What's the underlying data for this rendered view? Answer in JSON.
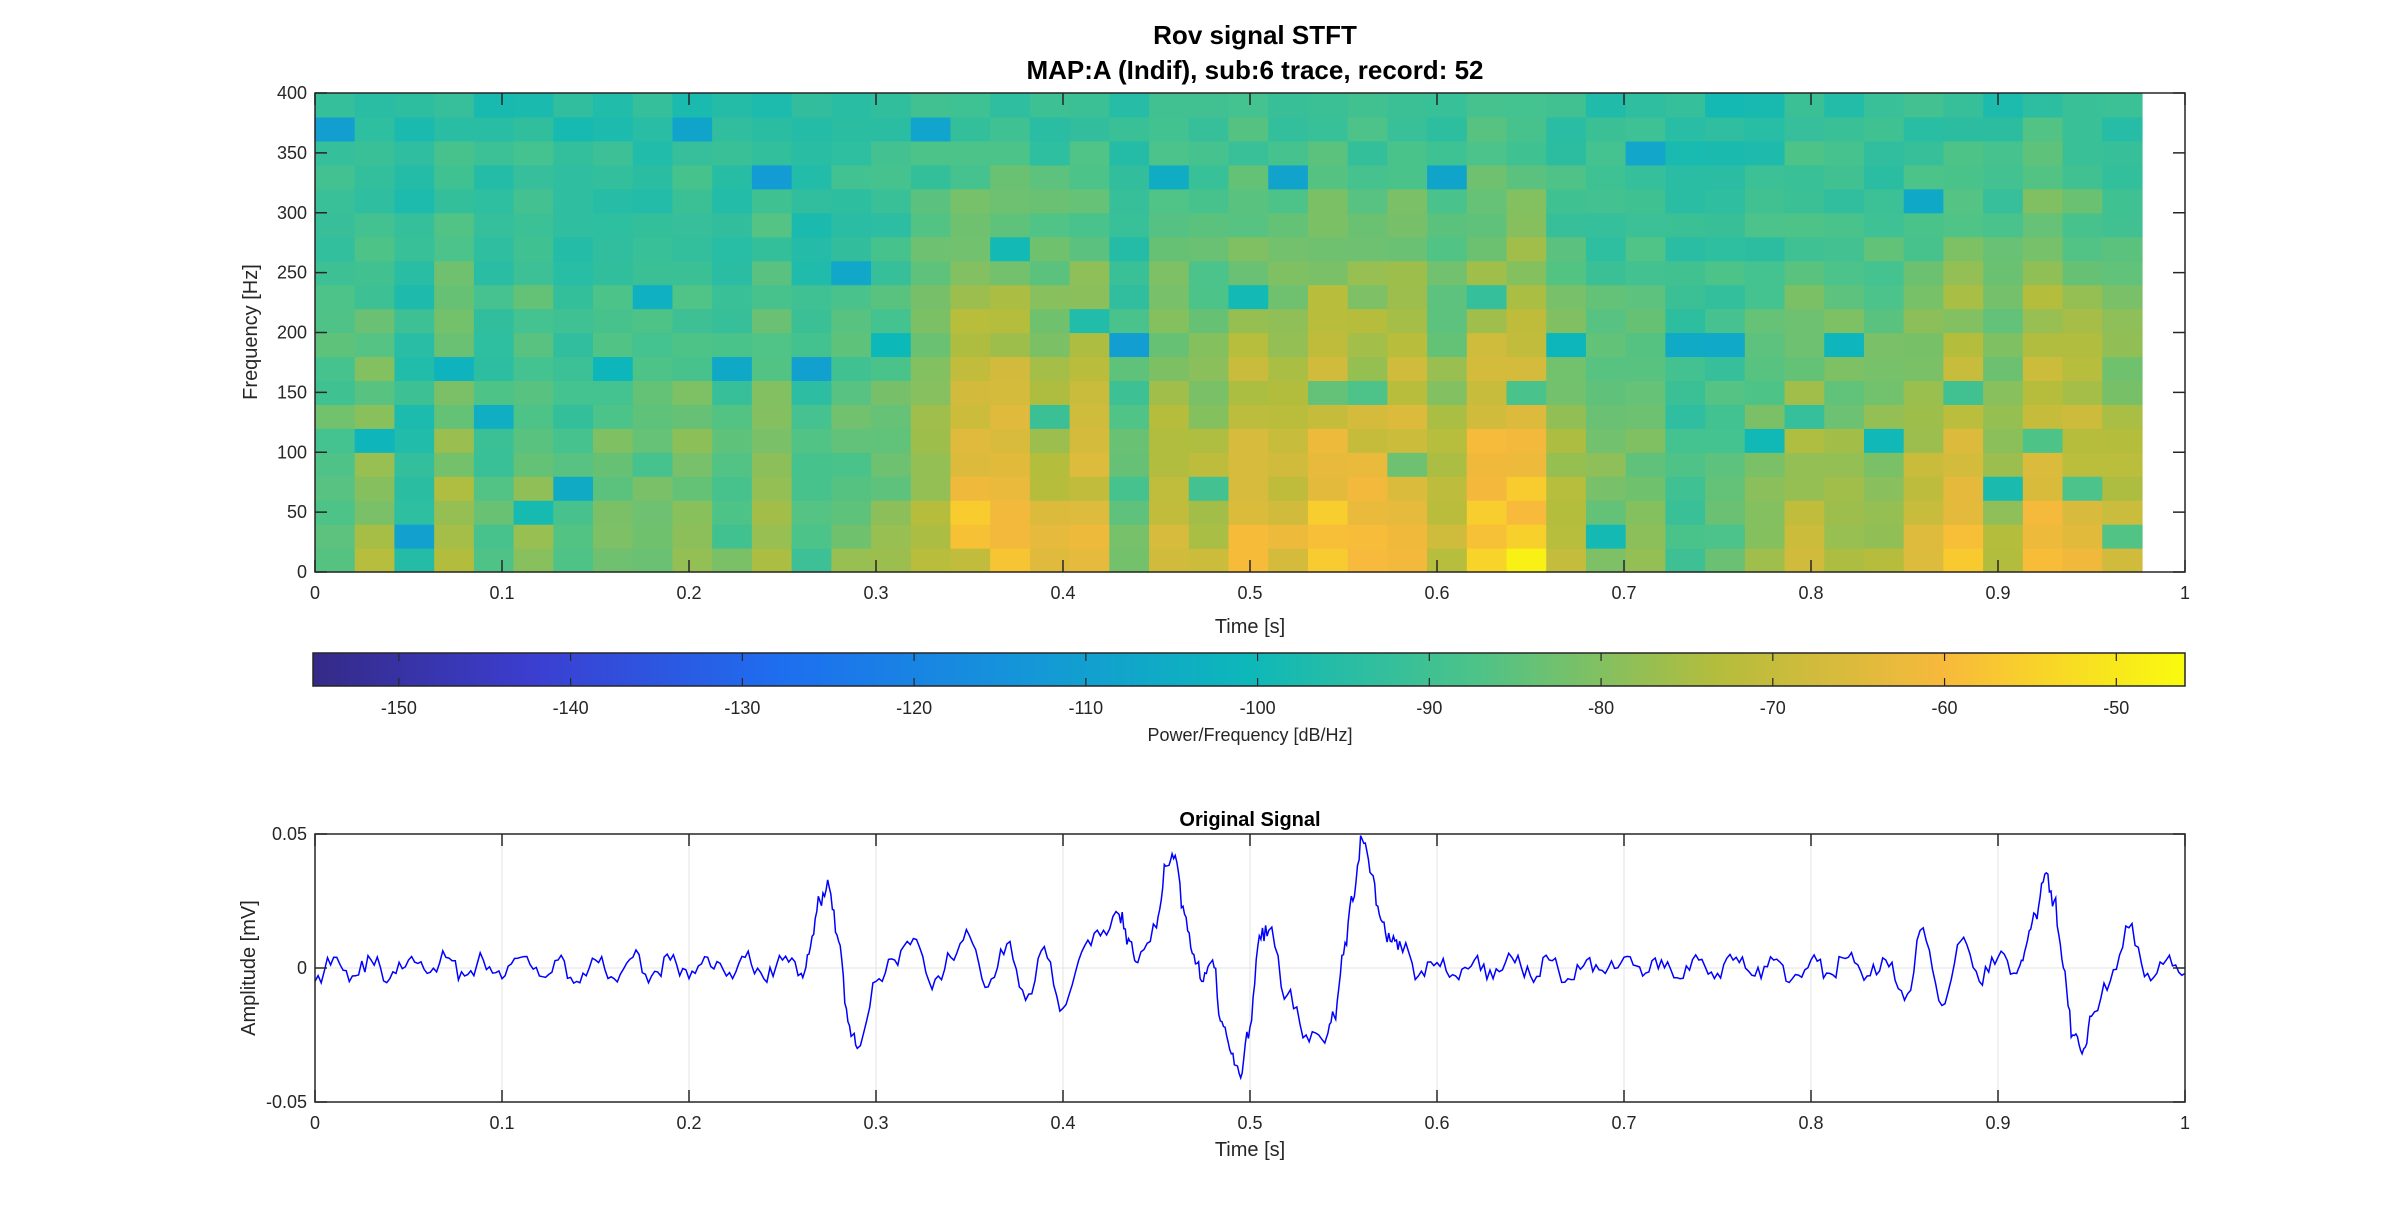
{
  "figure": {
    "title_line1": "Rov signal STFT",
    "title_line2": "MAP:A (Indif), sub:6 trace, record: 52"
  },
  "chart_data": [
    {
      "type": "heatmap",
      "name": "spectrogram",
      "xlabel": "Time [s]",
      "ylabel": "Frequency [Hz]",
      "xlim": [
        0,
        1
      ],
      "ylim": [
        0,
        400
      ],
      "xticks": [
        0,
        0.1,
        0.2,
        0.3,
        0.4,
        0.5,
        0.6,
        0.7,
        0.8,
        0.9,
        1
      ],
      "xtick_labels": [
        "0",
        "0.1",
        "0.2",
        "0.3",
        "0.4",
        "0.5",
        "0.6",
        "0.7",
        "0.8",
        "0.9",
        "1"
      ],
      "yticks": [
        0,
        50,
        100,
        150,
        200,
        250,
        300,
        350,
        400
      ],
      "ytick_labels": [
        "0",
        "50",
        "100",
        "150",
        "200",
        "250",
        "300",
        "350",
        "400"
      ],
      "data_time_range": [
        0,
        0.977
      ],
      "time_bins": 46,
      "freq_bins": 20,
      "colormap": "parula",
      "colorbar": {
        "label": "Power/Frequency [dB/Hz]",
        "range": [
          -155,
          -46
        ],
        "ticks": [
          -150,
          -140,
          -130,
          -120,
          -110,
          -100,
          -90,
          -80,
          -70,
          -60,
          -50
        ],
        "tick_labels": [
          "-150",
          "-140",
          "-130",
          "-120",
          "-110",
          "-100",
          "-90",
          "-80",
          "-70",
          "-60",
          "-50"
        ],
        "location": "bottom"
      },
      "columns_low_freq_power_db": [
        -82,
        -76,
        -92,
        -74,
        -86,
        -79,
        -88,
        -80,
        -82,
        -78,
        -85,
        -77,
        -88,
        -81,
        -79,
        -72,
        -56,
        -57,
        -66,
        -62,
        -84,
        -68,
        -70,
        -59,
        -64,
        -55,
        -60,
        -57,
        -70,
        -54,
        -52,
        -72,
        -79,
        -77,
        -88,
        -84,
        -80,
        -71,
        -74,
        -75,
        -66,
        -60,
        -73,
        -57,
        -63,
        -70
      ]
    },
    {
      "type": "line",
      "name": "original-signal",
      "title": "Original Signal",
      "xlabel": "Time [s]",
      "ylabel": "Amplitude [mV]",
      "xlim": [
        0,
        1
      ],
      "ylim": [
        -0.05,
        0.05
      ],
      "xticks": [
        0,
        0.1,
        0.2,
        0.3,
        0.4,
        0.5,
        0.6,
        0.7,
        0.8,
        0.9,
        1
      ],
      "xtick_labels": [
        "0",
        "0.1",
        "0.2",
        "0.3",
        "0.4",
        "0.5",
        "0.6",
        "0.7",
        "0.8",
        "0.9",
        "1"
      ],
      "yticks": [
        -0.05,
        0,
        0.05
      ],
      "ytick_labels": [
        "-0.05",
        "0",
        "0.05"
      ],
      "grid": true,
      "series": [
        {
          "color": "#0000ff",
          "x": [
            0,
            0.01,
            0.02,
            0.03,
            0.04,
            0.05,
            0.06,
            0.07,
            0.08,
            0.09,
            0.1,
            0.11,
            0.12,
            0.13,
            0.14,
            0.15,
            0.16,
            0.17,
            0.18,
            0.19,
            0.2,
            0.21,
            0.22,
            0.23,
            0.24,
            0.25,
            0.26,
            0.265,
            0.27,
            0.275,
            0.28,
            0.285,
            0.29,
            0.3,
            0.31,
            0.32,
            0.33,
            0.34,
            0.35,
            0.36,
            0.37,
            0.38,
            0.39,
            0.4,
            0.41,
            0.42,
            0.43,
            0.435,
            0.44,
            0.45,
            0.455,
            0.46,
            0.465,
            0.47,
            0.475,
            0.48,
            0.485,
            0.49,
            0.495,
            0.5,
            0.505,
            0.51,
            0.52,
            0.53,
            0.54,
            0.545,
            0.55,
            0.555,
            0.56,
            0.565,
            0.57,
            0.575,
            0.58,
            0.59,
            0.6,
            0.61,
            0.62,
            0.63,
            0.64,
            0.65,
            0.66,
            0.67,
            0.68,
            0.69,
            0.7,
            0.71,
            0.72,
            0.73,
            0.74,
            0.75,
            0.76,
            0.77,
            0.78,
            0.79,
            0.8,
            0.81,
            0.82,
            0.83,
            0.84,
            0.85,
            0.86,
            0.87,
            0.88,
            0.89,
            0.9,
            0.91,
            0.915,
            0.92,
            0.925,
            0.93,
            0.935,
            0.94,
            0.945,
            0.95,
            0.96,
            0.97,
            0.98,
            0.99,
            1.0
          ],
          "y": [
            -0.005,
            0.004,
            -0.003,
            0.003,
            -0.004,
            0.003,
            -0.002,
            0.004,
            -0.003,
            0.003,
            -0.004,
            0.004,
            -0.003,
            0.003,
            -0.005,
            0.003,
            -0.004,
            0.004,
            -0.003,
            0.003,
            -0.004,
            0.004,
            -0.003,
            0.004,
            -0.004,
            0.003,
            -0.002,
            0.008,
            0.025,
            0.03,
            0.01,
            -0.02,
            -0.03,
            -0.005,
            0.003,
            0.011,
            -0.008,
            0.004,
            0.012,
            -0.007,
            0.009,
            -0.012,
            0.008,
            -0.015,
            0.006,
            0.012,
            0.02,
            0.011,
            0.002,
            0.015,
            0.038,
            0.042,
            0.02,
            0.005,
            -0.005,
            0.003,
            -0.02,
            -0.032,
            -0.041,
            -0.022,
            0.012,
            0.014,
            -0.01,
            -0.025,
            -0.028,
            -0.018,
            0.005,
            0.025,
            0.048,
            0.035,
            0.018,
            0.01,
            0.01,
            -0.003,
            0.002,
            -0.003,
            0.003,
            -0.004,
            0.004,
            -0.003,
            0.003,
            -0.004,
            0.003,
            -0.002,
            0.004,
            -0.003,
            0.003,
            -0.004,
            0.003,
            -0.002,
            0.004,
            -0.003,
            0.003,
            -0.004,
            0.003,
            -0.002,
            0.004,
            -0.003,
            0.003,
            -0.012,
            0.015,
            -0.014,
            0.01,
            -0.005,
            0.004,
            -0.002,
            0.008,
            0.02,
            0.035,
            0.025,
            0.0,
            -0.025,
            -0.032,
            -0.018,
            -0.005,
            0.015,
            -0.002,
            0.003,
            -0.002
          ]
        }
      ]
    }
  ]
}
